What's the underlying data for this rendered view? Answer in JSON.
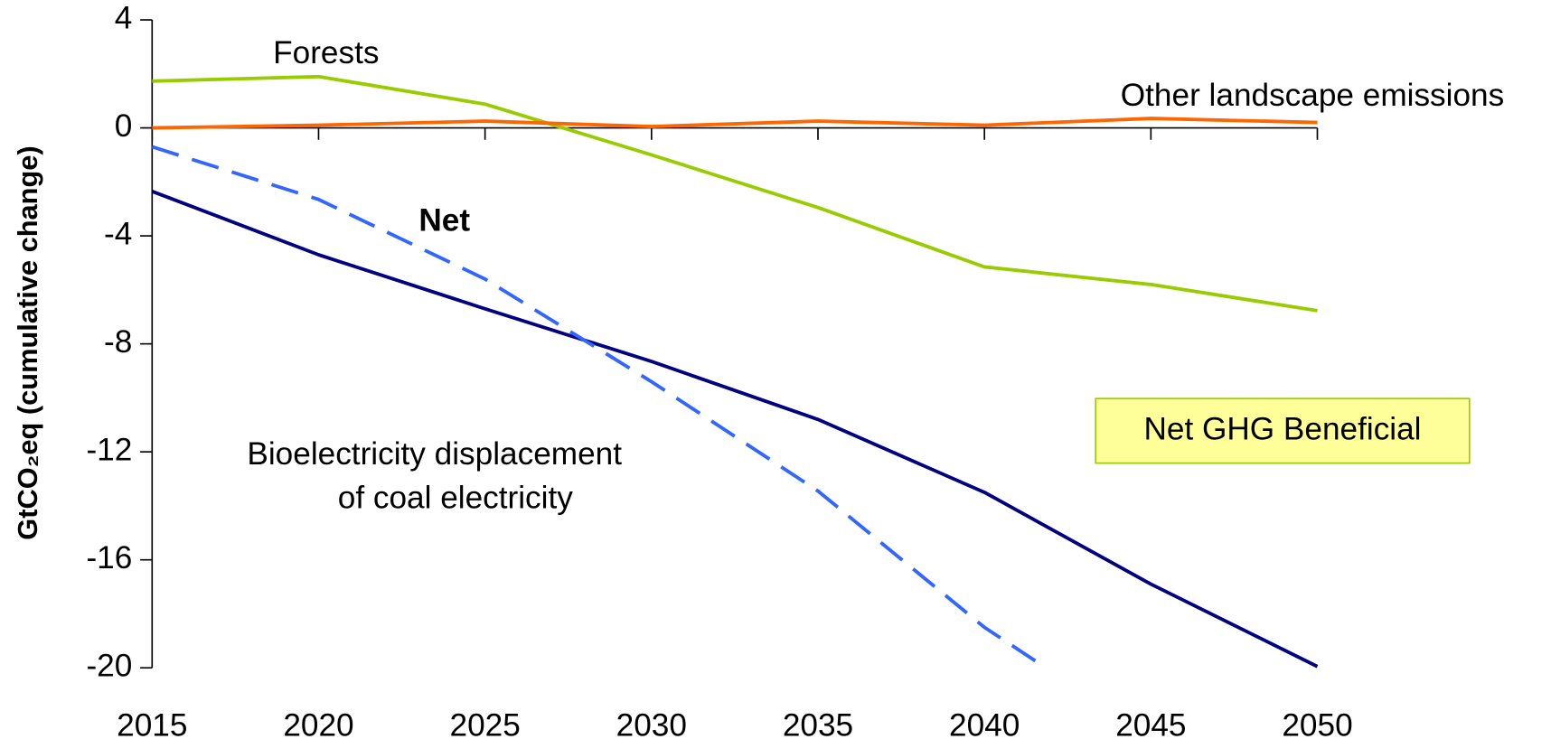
{
  "chart_data": {
    "type": "line",
    "y_label": "GtCO₂eq (cumulative change)",
    "x": [
      2015,
      2020,
      2025,
      2030,
      2035,
      2040,
      2045,
      2050
    ],
    "xlim": [
      2015,
      2050
    ],
    "xticks": [
      2015,
      2020,
      2025,
      2030,
      2035,
      2040,
      2045,
      2050
    ],
    "ylim": [
      -20,
      4
    ],
    "yticks": [
      4,
      0,
      -4,
      -8,
      -12,
      -16,
      -20
    ],
    "series": [
      {
        "color": "#99cc00",
        "values": [
          1.73,
          1.9,
          0.88,
          -1.0,
          -2.95,
          -5.15,
          -5.8,
          -6.77
        ]
      },
      {
        "color": "#ff6600",
        "values": [
          0,
          0.1,
          0.25,
          0.05,
          0.25,
          0.1,
          0.35,
          0.2
        ]
      },
      {
        "color": "#000080",
        "values": [
          -2.35,
          -4.7,
          -6.7,
          -8.65,
          -10.8,
          -13.5,
          -16.9,
          -19.95
        ]
      },
      {
        "color": "#3366ff",
        "dashed": true,
        "x": [
          2015,
          2020,
          2025,
          2030,
          2035,
          2040,
          2041.6
        ],
        "values": [
          -0.7,
          -2.65,
          -5.6,
          -9.4,
          -13.45,
          -18.5,
          -19.8
        ]
      }
    ],
    "annotations": {
      "forests": "Forests",
      "other": "Other landscape emissions",
      "net": "Net",
      "bio": [
        "Bioelectricity displacement",
        "of coal electricity"
      ],
      "box": "Net GHG Beneficial"
    }
  }
}
